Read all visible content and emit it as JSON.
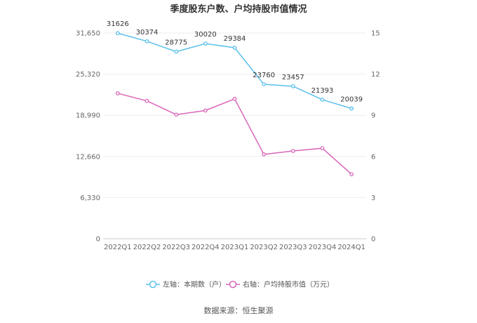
{
  "chart_data": {
    "type": "line",
    "title": "季度股东户数、户均持股市值情况",
    "categories": [
      "2022Q1",
      "2022Q2",
      "2022Q3",
      "2022Q4",
      "2023Q1",
      "2023Q2",
      "2023Q3",
      "2023Q4",
      "2024Q1"
    ],
    "left_axis": {
      "ticks": [
        "0",
        "6,330",
        "12,660",
        "18,990",
        "25,320",
        "31,650"
      ],
      "ylim": [
        0,
        31650
      ]
    },
    "right_axis": {
      "ticks": [
        "0",
        "3",
        "6",
        "9",
        "12",
        "15"
      ],
      "ylim": [
        0,
        15
      ]
    },
    "grid": true,
    "series": [
      {
        "name": "左轴：本期数（户）",
        "axis": "left",
        "color": "#5bc0eb",
        "values": [
          31626,
          30374,
          28775,
          30020,
          29384,
          23760,
          23457,
          21393,
          20039
        ],
        "labels": [
          "31626",
          "30374",
          "28775",
          "30020",
          "29384",
          "23760",
          "23457",
          "21393",
          "20039"
        ]
      },
      {
        "name": "右轴：户均持股市值（万元）",
        "axis": "right",
        "color": "#d966b8",
        "values": [
          10.6,
          10.05,
          9.05,
          9.35,
          10.2,
          6.15,
          6.4,
          6.6,
          4.7
        ]
      }
    ],
    "legend_position": "bottom"
  },
  "footer": {
    "source": "数据来源：恒生聚源"
  }
}
